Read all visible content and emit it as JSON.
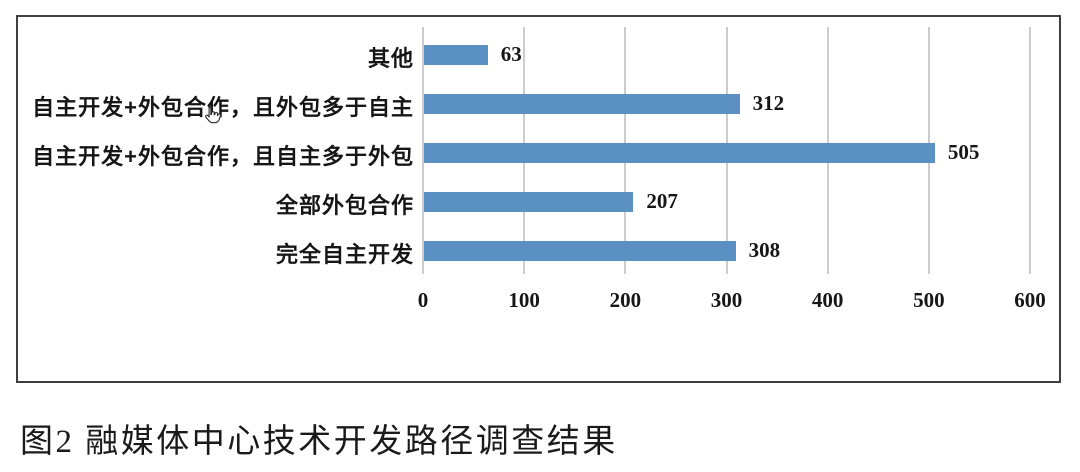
{
  "figure_caption": "图2 融媒体中心技术开发路径调查结果",
  "cursor_icon": "hand-pointer",
  "chart_data": {
    "type": "bar",
    "orientation": "horizontal",
    "title": "",
    "xlabel": "",
    "ylabel": "",
    "categories": [
      "其他",
      "自主开发+外包合作，且外包多于自主",
      "自主开发+外包合作，且自主多于外包",
      "全部外包合作",
      "完全自主开发"
    ],
    "category_order": "top-to-bottom",
    "values": [
      63,
      312,
      505,
      207,
      308
    ],
    "value_labels": [
      "63",
      "312",
      "505",
      "207",
      "308"
    ],
    "x_ticks": [
      "0",
      "100",
      "200",
      "300",
      "400",
      "500",
      "600"
    ],
    "xlim": [
      0,
      600
    ],
    "grid": "vertical-gridlines",
    "legend": "none",
    "bar_color": "#5a90c2",
    "gridline_color": "#cccccc",
    "frame_border_color": "#3f3f3f"
  }
}
